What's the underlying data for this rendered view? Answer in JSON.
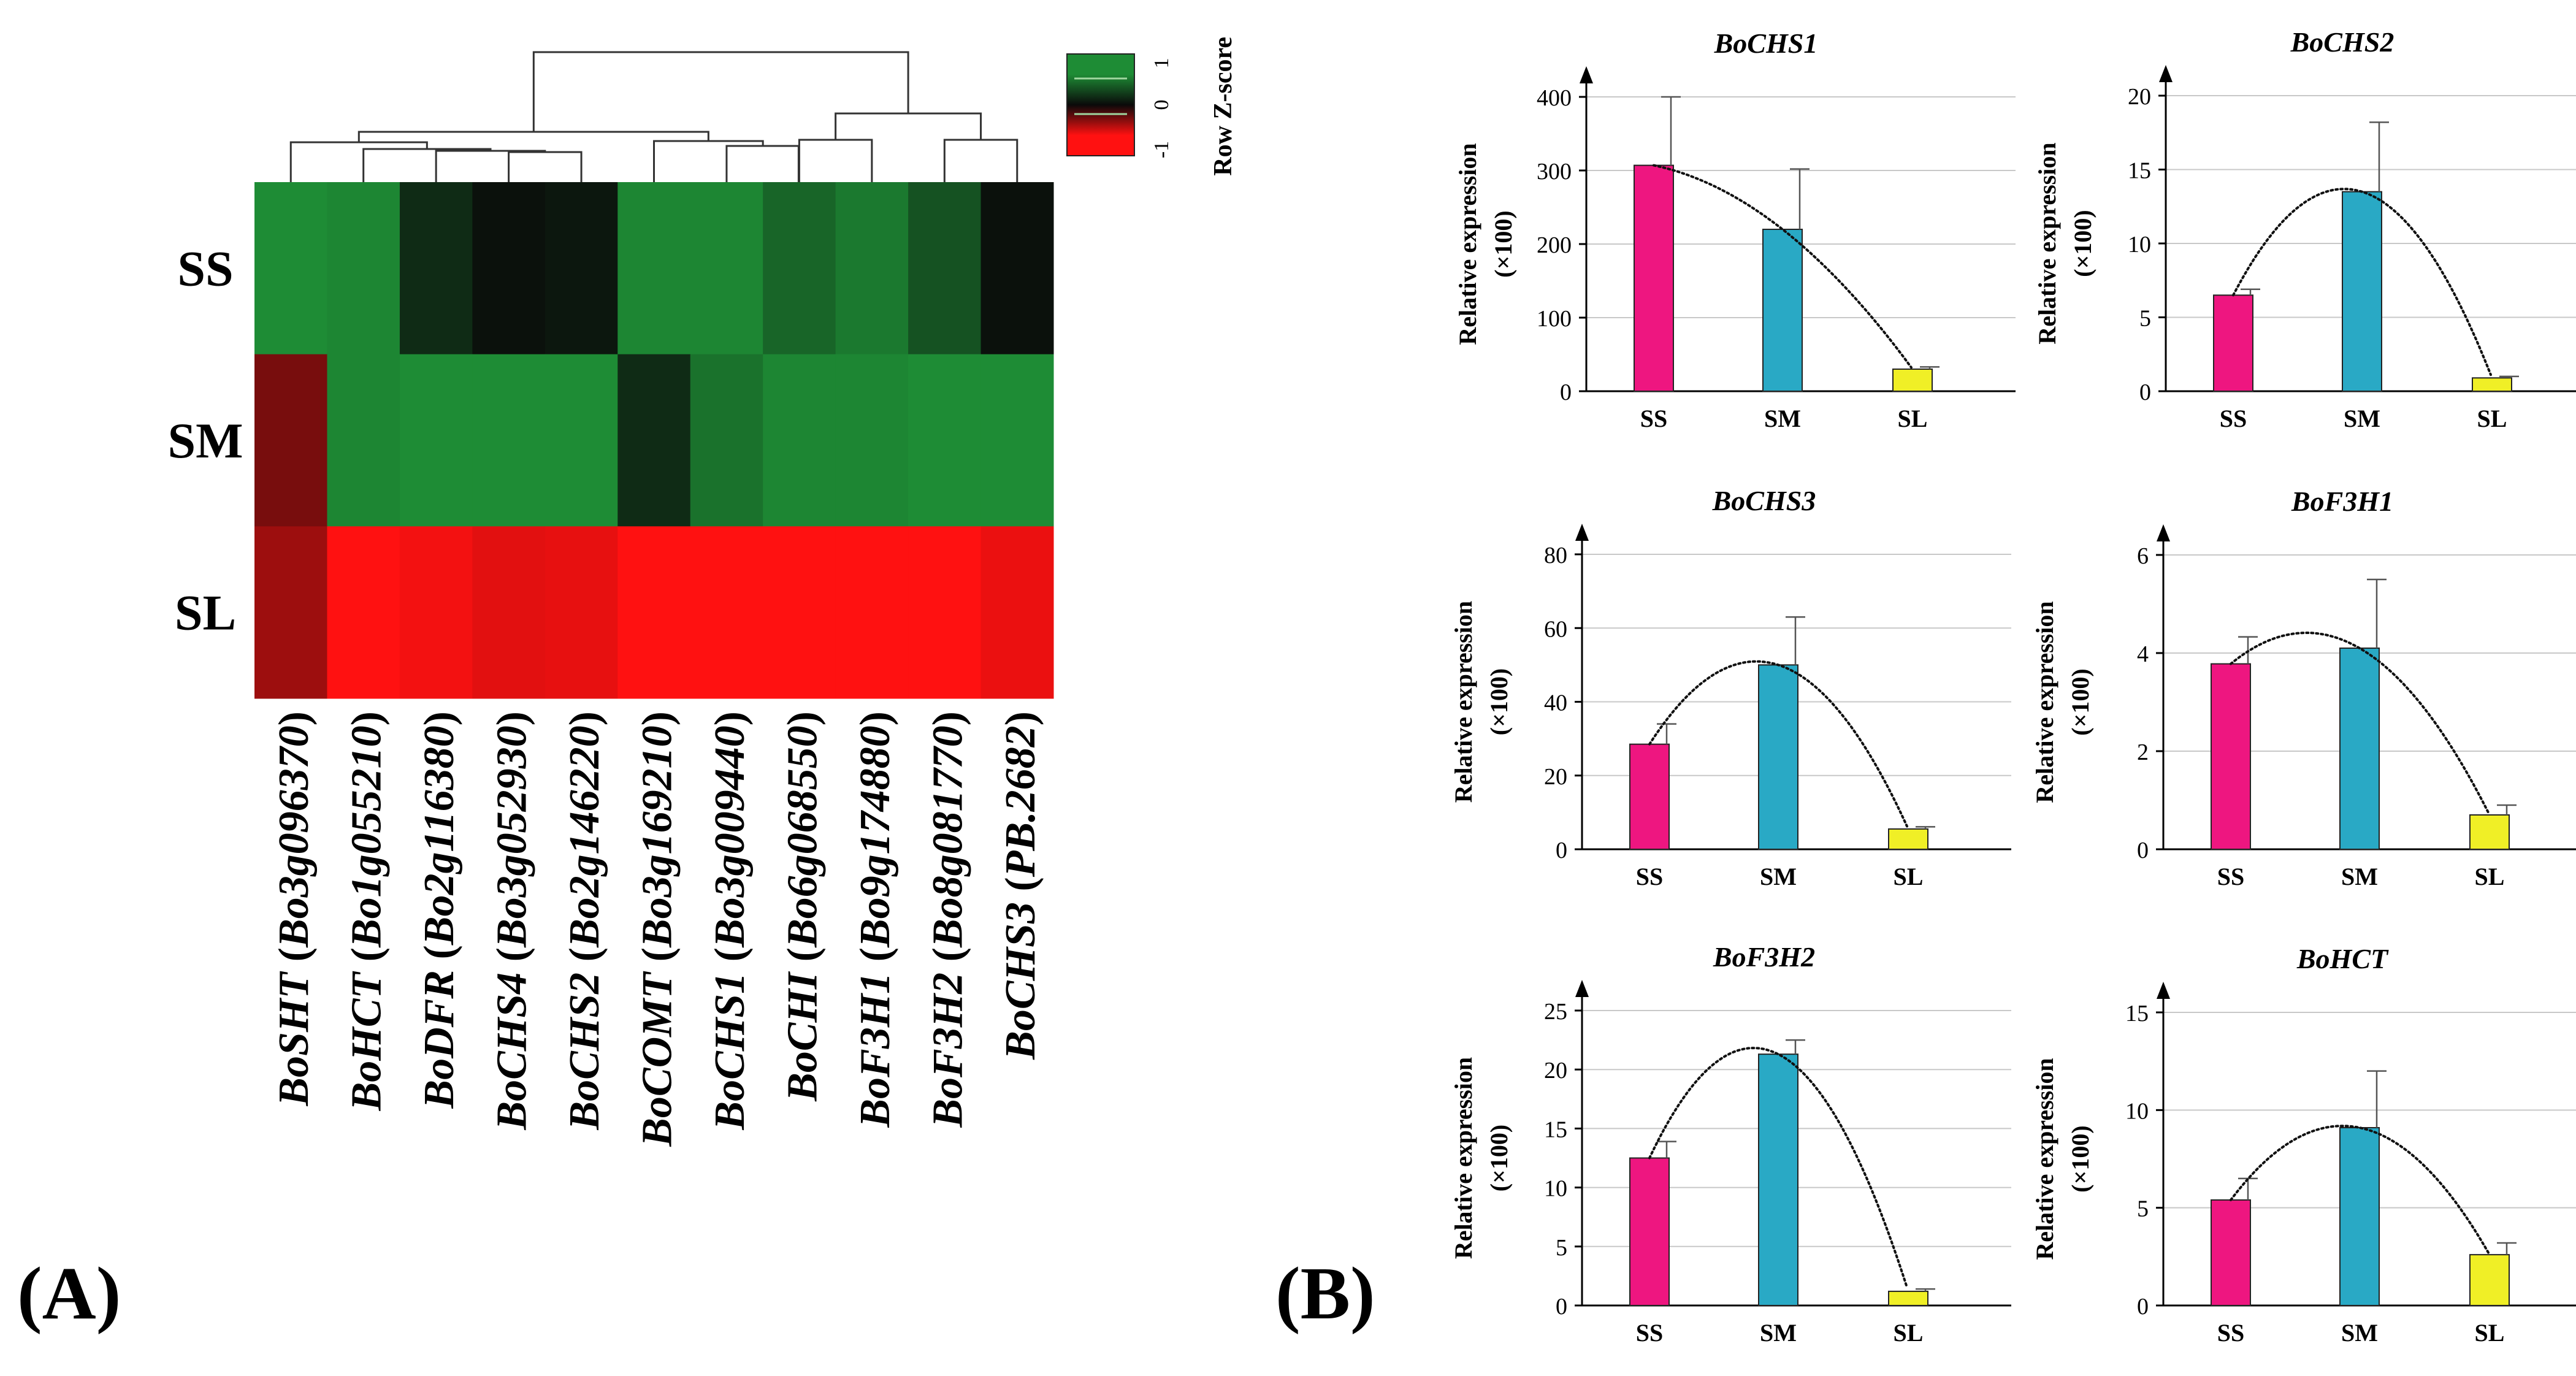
{
  "panels": {
    "a_label": "(A)",
    "b_label": "(B)"
  },
  "colors": {
    "green": "#1e8c35",
    "black": "#0a0a0a",
    "red": "#ff1111",
    "ss_bar": "#ee1680",
    "sm_bar": "#29a9c5",
    "sl_bar": "#f0ef26"
  },
  "chart_data": [
    {
      "type": "heatmap",
      "rows": [
        "SS",
        "SM",
        "SL"
      ],
      "columns": [
        "BoSHT (Bo3g096370)",
        "BoHCT (Bo1g055210)",
        "BoDFR (Bo2g116380)",
        "BoCHS4 (Bo3g052930)",
        "BoCHS2 (Bo2g146220)",
        "BoCOMT (Bo3g169210)",
        "BoCHS1 (Bo3g009440)",
        "BoCHI (Bo6g068550)",
        "BoF3H1 (Bo9g174880)",
        "BoF3H2 (Bo8g081770)",
        "BoCHS3 (PB.2682)"
      ],
      "values": [
        [
          1.0,
          0.95,
          0.25,
          0.05,
          0.1,
          0.95,
          0.95,
          0.7,
          0.85,
          0.55,
          0.05
        ],
        [
          -0.45,
          0.95,
          1.0,
          1.0,
          1.0,
          0.25,
          0.8,
          0.95,
          0.95,
          1.0,
          1.0
        ],
        [
          -0.6,
          -1.0,
          -0.95,
          -0.88,
          -0.9,
          -1.0,
          -1.0,
          -1.0,
          -1.0,
          -1.0,
          -0.92
        ]
      ],
      "legend": {
        "title": "Row Z-score",
        "ticks": [
          "1",
          "0",
          "-1"
        ],
        "range": [
          -1,
          1
        ]
      },
      "dendrogram": true
    },
    {
      "type": "bar",
      "title": "BoCHS1",
      "categories": [
        "SS",
        "SM",
        "SL"
      ],
      "values": [
        307,
        220,
        30
      ],
      "errors": [
        93,
        82,
        3
      ],
      "ylabel": "Relative expression",
      "ylabel2": "(×100)",
      "ylim": [
        0,
        400
      ],
      "yticks": [
        "0",
        "100",
        "200",
        "300",
        "400"
      ],
      "trend": "quadratic",
      "grid": true
    },
    {
      "type": "bar",
      "title": "BoCHS2",
      "categories": [
        "SS",
        "SM",
        "SL"
      ],
      "values": [
        6.5,
        13.5,
        0.9
      ],
      "errors": [
        0.4,
        4.7,
        0.1
      ],
      "ylabel": "Relative expression",
      "ylabel2": "(×100)",
      "ylim": [
        0,
        20
      ],
      "yticks": [
        "0",
        "5",
        "10",
        "15",
        "20"
      ],
      "trend": "quadratic",
      "grid": true
    },
    {
      "type": "bar",
      "title": "BoCHS3",
      "categories": [
        "SS",
        "SM",
        "SL"
      ],
      "values": [
        28.5,
        50,
        5.5
      ],
      "errors": [
        5.5,
        13,
        0.6
      ],
      "ylabel": "Relative expression",
      "ylabel2": "(×100)",
      "ylim": [
        0,
        80
      ],
      "yticks": [
        "0",
        "20",
        "40",
        "60",
        "80"
      ],
      "trend": "quadratic",
      "grid": true
    },
    {
      "type": "bar",
      "title": "BoF3H1",
      "categories": [
        "SS",
        "SM",
        "SL"
      ],
      "values": [
        3.78,
        4.1,
        0.7
      ],
      "errors": [
        0.55,
        1.4,
        0.2
      ],
      "ylabel": "Relative expression",
      "ylabel2": "(×100)",
      "ylim": [
        0,
        6
      ],
      "yticks": [
        "0",
        "2",
        "4",
        "6"
      ],
      "trend": "quadratic",
      "grid": true
    },
    {
      "type": "bar",
      "title": "BoF3H2",
      "categories": [
        "SS",
        "SM",
        "SL"
      ],
      "values": [
        12.5,
        21.3,
        1.2
      ],
      "errors": [
        1.4,
        1.2,
        0.2
      ],
      "ylabel": "Relative expression",
      "ylabel2": "(×100)",
      "ylim": [
        0,
        25
      ],
      "yticks": [
        "0",
        "5",
        "10",
        "15",
        "20",
        "25"
      ],
      "trend": "quadratic",
      "grid": true
    },
    {
      "type": "bar",
      "title": "BoHCT",
      "categories": [
        "SS",
        "SM",
        "SL"
      ],
      "values": [
        5.4,
        9.1,
        2.6
      ],
      "errors": [
        1.1,
        2.9,
        0.6
      ],
      "ylabel": "Relative expression",
      "ylabel2": "(×100)",
      "ylim": [
        0,
        15
      ],
      "yticks": [
        "0",
        "5",
        "10",
        "15"
      ],
      "trend": "quadratic",
      "grid": true
    }
  ]
}
